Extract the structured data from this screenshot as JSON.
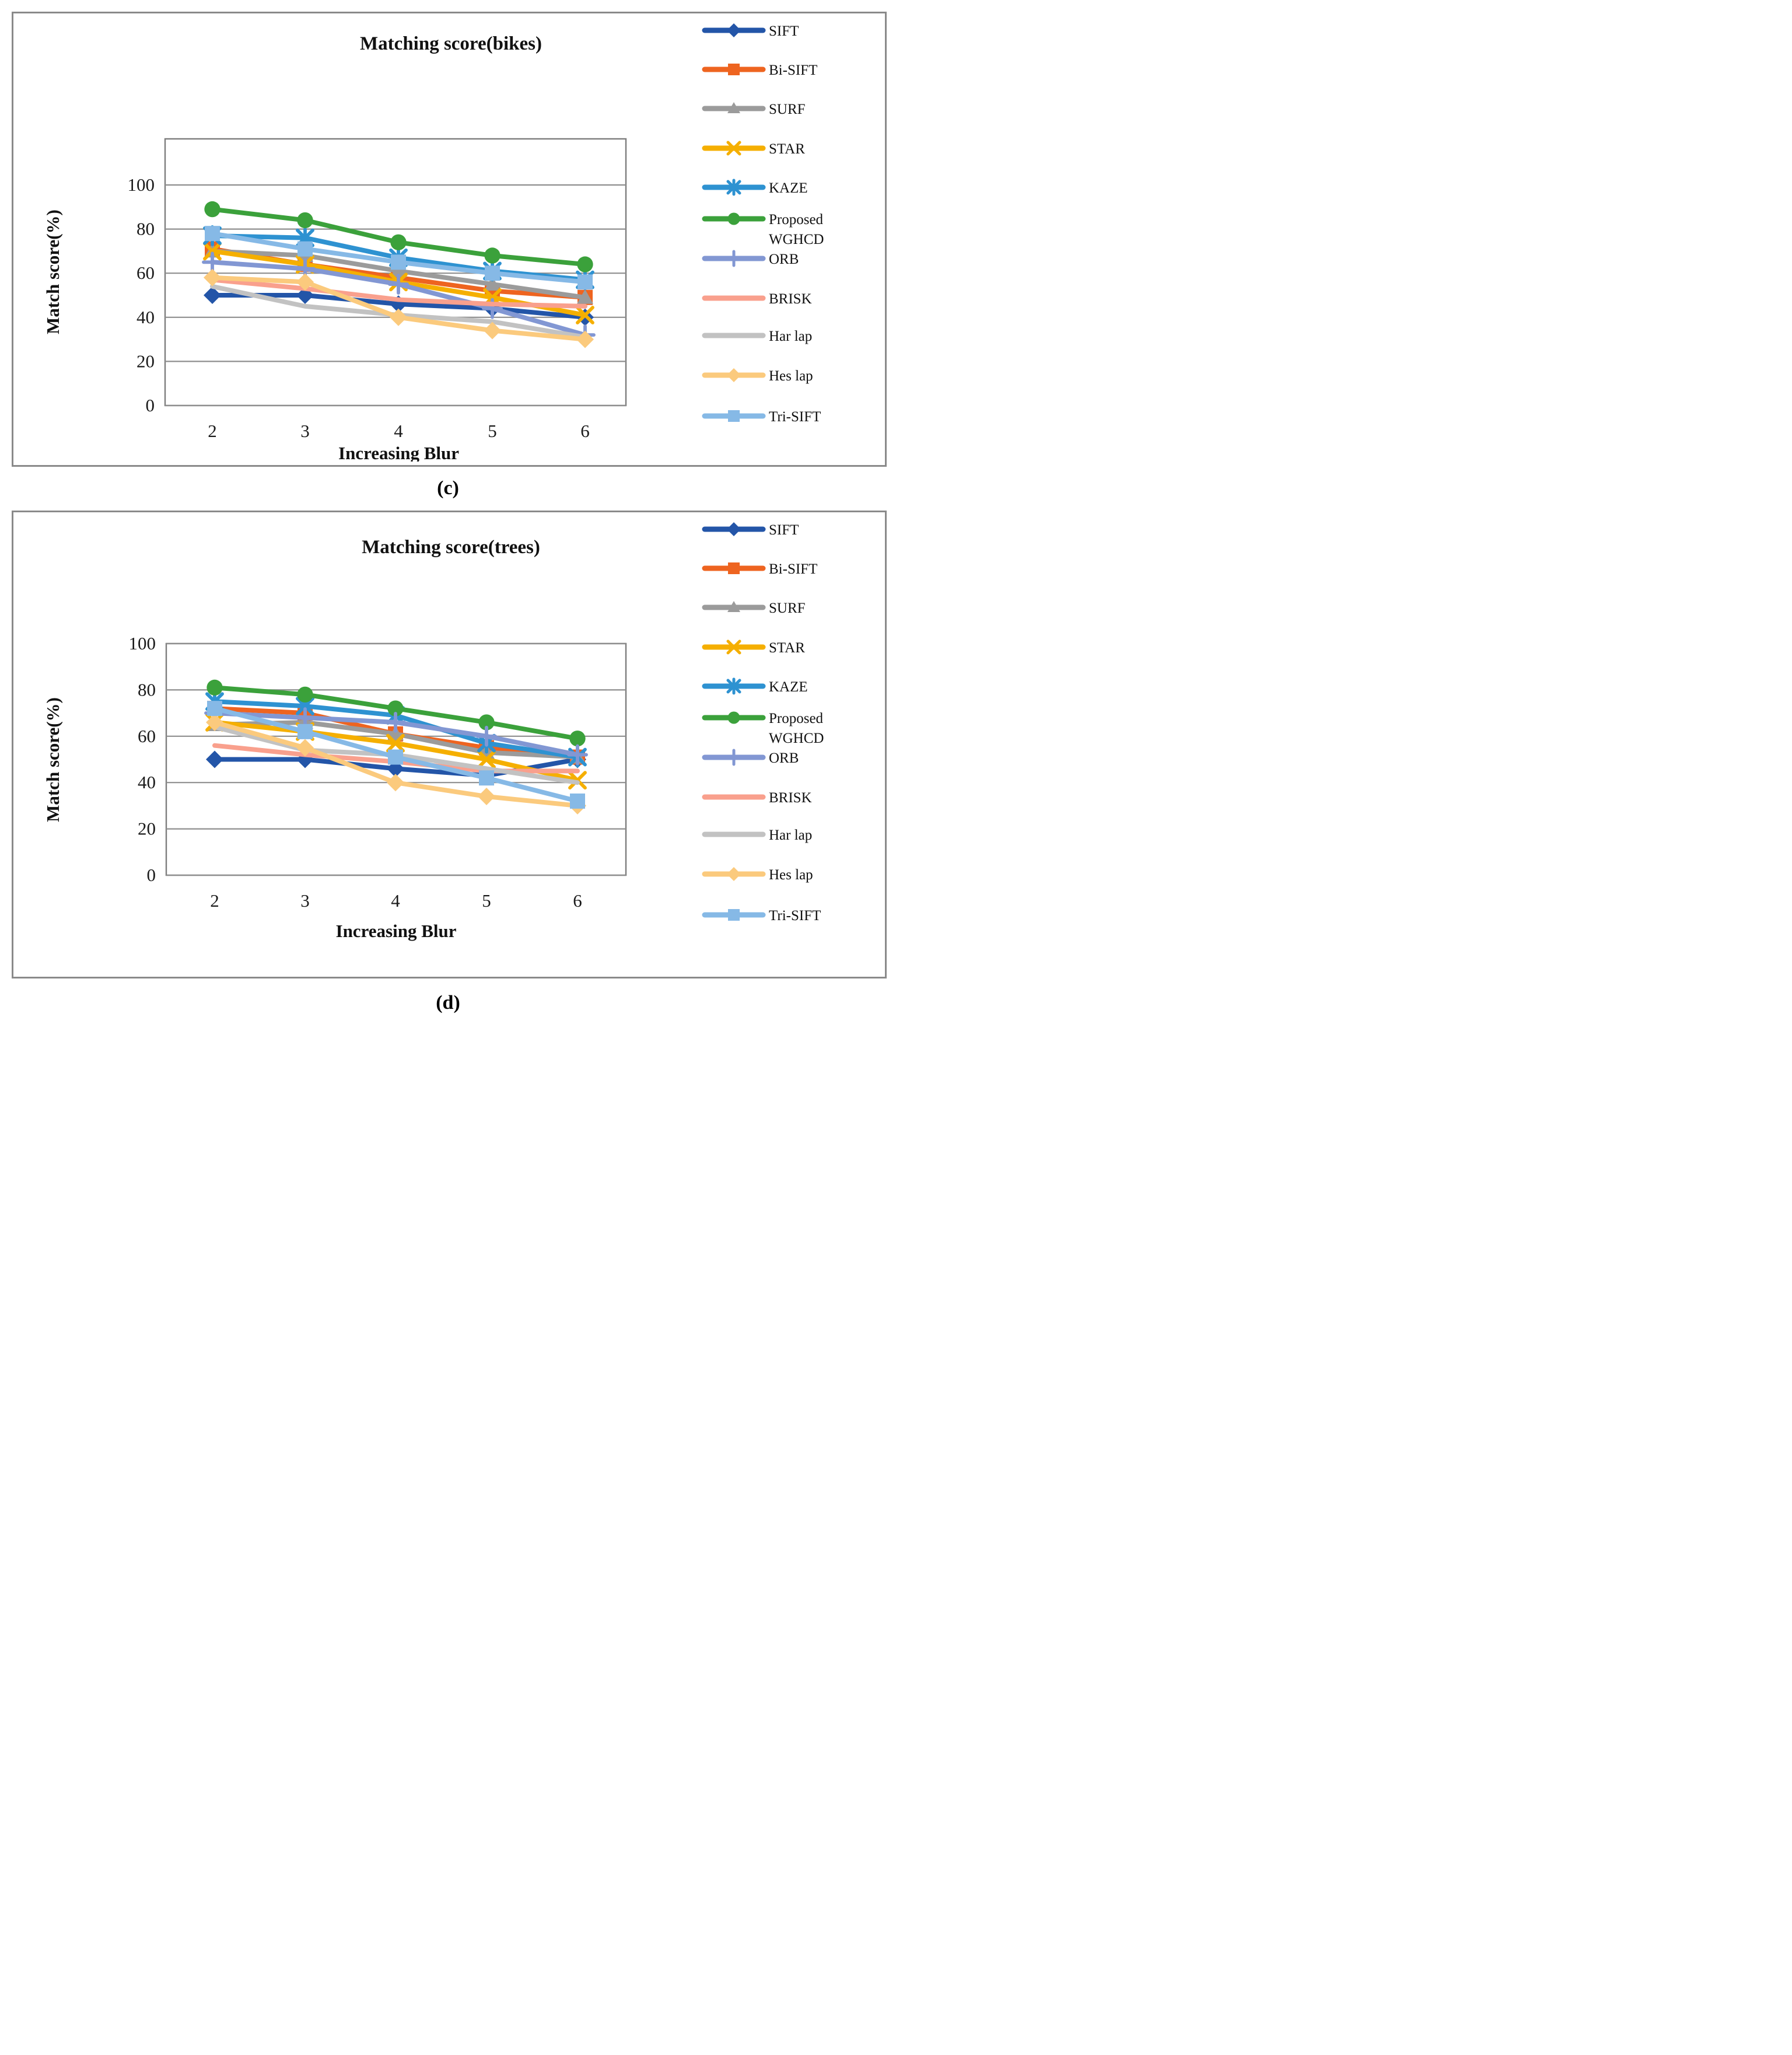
{
  "figure": {
    "caption_c": "(c)",
    "caption_d": "(d)"
  },
  "chart_data": [
    {
      "type": "line",
      "title": "Matching score(bikes)",
      "xlabel": "Increasing Blur",
      "ylabel": "Match score(%)",
      "x": [
        2,
        3,
        4,
        5,
        6
      ],
      "ylim": [
        0,
        100
      ],
      "yticks": [
        0,
        20,
        40,
        60,
        80,
        100
      ],
      "grid": true,
      "legend_position": "right",
      "series": [
        {
          "name": "SIFT",
          "color": "#2355A8",
          "marker": "diamond",
          "values": [
            50,
            50,
            46,
            44,
            40
          ]
        },
        {
          "name": "Bi-SIFT",
          "color": "#EE6420",
          "marker": "square",
          "values": [
            71,
            64,
            58,
            52,
            49
          ]
        },
        {
          "name": "SURF",
          "color": "#9B9B9B",
          "marker": "triangle",
          "values": [
            70,
            68,
            61,
            55,
            49
          ]
        },
        {
          "name": "STAR",
          "color": "#F5AF00",
          "marker": "x",
          "values": [
            70,
            64,
            56,
            49,
            41
          ]
        },
        {
          "name": "KAZE",
          "color": "#2E92D1",
          "marker": "asterisk",
          "values": [
            77,
            76,
            67,
            61,
            57
          ]
        },
        {
          "name": "Proposed WGHCD",
          "color": "#3BA13B",
          "marker": "circle",
          "values": [
            89,
            84,
            74,
            68,
            64
          ],
          "wrap": true
        },
        {
          "name": "ORB",
          "color": "#8297D3",
          "marker": "plus",
          "values": [
            65,
            62,
            55,
            44,
            32
          ]
        },
        {
          "name": "BRISK",
          "color": "#F9A08D",
          "marker": "none",
          "values": [
            57,
            53,
            48,
            46,
            45
          ]
        },
        {
          "name": "Har lap",
          "color": "#C2C2C2",
          "marker": "none",
          "values": [
            54,
            45,
            41,
            38,
            31
          ]
        },
        {
          "name": "Hes lap",
          "color": "#FBCA7D",
          "marker": "diamond",
          "values": [
            58,
            56,
            40,
            34,
            30
          ]
        },
        {
          "name": "Tri-SIFT",
          "color": "#86B9E6",
          "marker": "square",
          "values": [
            78,
            71,
            65,
            60,
            56
          ]
        }
      ]
    },
    {
      "type": "line",
      "title": "Matching score(trees)",
      "xlabel": "Increasing Blur",
      "ylabel": "Match score(%)",
      "x": [
        2,
        3,
        4,
        5,
        6
      ],
      "ylim": [
        0,
        100
      ],
      "yticks": [
        0,
        20,
        40,
        60,
        80,
        100
      ],
      "grid": true,
      "legend_position": "right",
      "series": [
        {
          "name": "SIFT",
          "color": "#2355A8",
          "marker": "diamond",
          "values": [
            50,
            50,
            46,
            43,
            50
          ]
        },
        {
          "name": "Bi-SIFT",
          "color": "#EE6420",
          "marker": "square",
          "values": [
            72,
            70,
            61,
            55,
            51
          ]
        },
        {
          "name": "SURF",
          "color": "#9B9B9B",
          "marker": "triangle",
          "values": [
            65,
            66,
            61,
            53,
            51
          ]
        },
        {
          "name": "STAR",
          "color": "#F5AF00",
          "marker": "x",
          "values": [
            66,
            62,
            57,
            50,
            41
          ]
        },
        {
          "name": "KAZE",
          "color": "#2E92D1",
          "marker": "asterisk",
          "values": [
            75,
            73,
            69,
            57,
            51
          ]
        },
        {
          "name": "Proposed WGHCD",
          "color": "#3BA13B",
          "marker": "circle",
          "values": [
            81,
            78,
            72,
            66,
            59
          ],
          "wrap": true
        },
        {
          "name": "ORB",
          "color": "#8297D3",
          "marker": "plus",
          "values": [
            70,
            68,
            66,
            60,
            52
          ]
        },
        {
          "name": "BRISK",
          "color": "#F9A08D",
          "marker": "none",
          "values": [
            56,
            52,
            49,
            45,
            45
          ]
        },
        {
          "name": "Har lap",
          "color": "#C2C2C2",
          "marker": "none",
          "values": [
            64,
            54,
            52,
            46,
            40
          ]
        },
        {
          "name": "Hes lap",
          "color": "#FBCA7D",
          "marker": "diamond",
          "values": [
            66,
            55,
            40,
            34,
            30
          ]
        },
        {
          "name": "Tri-SIFT",
          "color": "#86B9E6",
          "marker": "square",
          "values": [
            72,
            62,
            51,
            42,
            32
          ]
        }
      ]
    }
  ]
}
